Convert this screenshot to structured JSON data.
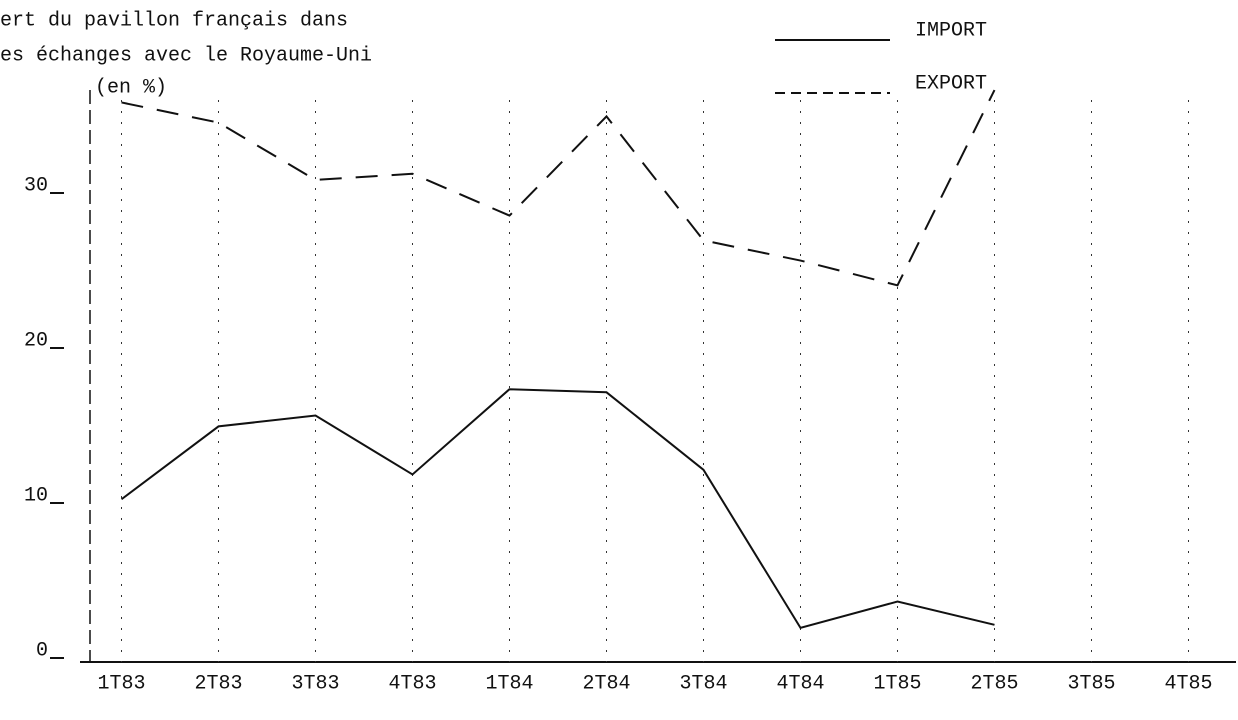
{
  "chart_data": {
    "type": "line",
    "title": [
      "ert du pavillon français dans",
      "es échanges avec le Royaume-Uni"
    ],
    "unit_label": "(en %)",
    "categories": [
      "1T83",
      "2T83",
      "3T83",
      "4T83",
      "1T84",
      "2T84",
      "3T84",
      "4T84",
      "1T85",
      "2T85",
      "3T85",
      "4T85"
    ],
    "series": [
      {
        "name": "IMPORT",
        "color": "#111111",
        "dash": "solid",
        "values": [
          10.5,
          15.2,
          15.9,
          12.1,
          17.6,
          17.4,
          12.4,
          2.2,
          3.9,
          2.4,
          null,
          null
        ]
      },
      {
        "name": "EXPORT",
        "color": "#111111",
        "dash": "dashed",
        "values": [
          36.1,
          34.8,
          31.1,
          31.5,
          28.8,
          35.2,
          27.2,
          25.9,
          24.3,
          36.9,
          null,
          null
        ]
      }
    ],
    "ylim": [
      0,
      40
    ],
    "yticks": [
      0,
      10,
      20,
      30
    ],
    "grid": true,
    "legend": "top-right"
  }
}
